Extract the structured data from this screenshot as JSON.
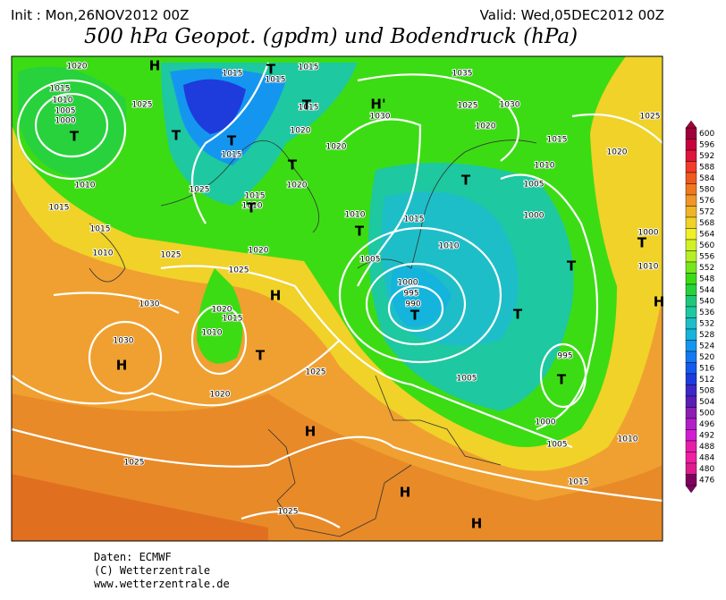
{
  "header": {
    "init": "Init : Mon,26NOV2012 00Z",
    "valid": "Valid: Wed,05DEC2012 00Z",
    "title": "500 hPa Geopot. (gpdm) und Bodendruck (hPa)"
  },
  "colorbar": {
    "levels": [
      600,
      596,
      592,
      588,
      584,
      580,
      576,
      572,
      568,
      564,
      560,
      556,
      552,
      548,
      544,
      540,
      536,
      532,
      528,
      524,
      520,
      516,
      512,
      508,
      504,
      500,
      496,
      492,
      488,
      484,
      480,
      476
    ],
    "colors": [
      "#a0003c",
      "#c8003c",
      "#e0143c",
      "#f03c28",
      "#f05a1e",
      "#f07820",
      "#f09628",
      "#f0b428",
      "#f0d228",
      "#f0f028",
      "#d2f028",
      "#b4f028",
      "#78e61e",
      "#3cdc14",
      "#28d23c",
      "#1ec878",
      "#1ec8a0",
      "#1ebec8",
      "#14b4dc",
      "#1496f0",
      "#1478f0",
      "#145af0",
      "#1e3cdc",
      "#3c28c8",
      "#5a1eb4",
      "#8c1eb4",
      "#b41ec8",
      "#d21ed2",
      "#e61eaa",
      "#f01ea0",
      "#dc1e8c",
      "#800060"
    ]
  },
  "map": {
    "isobar_labels": [
      1020,
      1015,
      1010,
      1005,
      1000,
      1025,
      1015,
      1015,
      1015,
      1015,
      1035,
      1030,
      1025,
      1030,
      1020,
      1025,
      1020,
      1020,
      1015,
      1015,
      1010,
      1020,
      1025,
      1020,
      1005,
      1010,
      1015,
      1015,
      1010,
      1010,
      1015,
      1000,
      1015,
      1010,
      1010,
      1025,
      1020,
      1005,
      1025,
      1000,
      1010,
      1000,
      995,
      990,
      1030,
      1020,
      1015,
      1010,
      1030,
      995,
      1025,
      1005,
      1020,
      1000,
      1005,
      1010,
      1025,
      1015,
      1025
    ],
    "pressure_centers": [
      "H",
      "T",
      "T",
      "T",
      "T",
      "T",
      "T",
      "T",
      "H'",
      "T",
      "T",
      "T",
      "T",
      "T",
      "T",
      "H",
      "H",
      "T",
      "H",
      "H",
      "H",
      "H",
      "T"
    ]
  },
  "footer": {
    "lines": [
      "Daten: ECMWF",
      "(C) Wetterzentrale",
      "www.wetterzentrale.de"
    ]
  }
}
